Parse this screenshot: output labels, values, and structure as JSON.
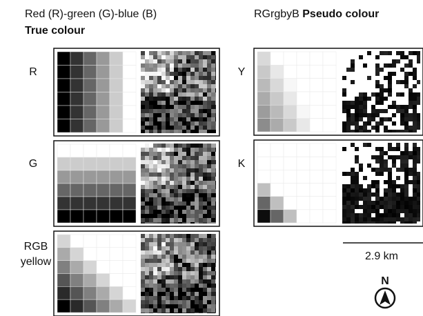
{
  "header": {
    "left_title": "Red (R)-green (G)-blue (B)",
    "left_subtitle": "True colour",
    "right_title_prefix": "RGrgbyB",
    "right_title_bold": "Pseudo colour"
  },
  "panels": [
    {
      "label": [
        "R"
      ]
    },
    {
      "label": [
        "G"
      ]
    },
    {
      "label": [
        "RGB",
        "yellow"
      ]
    },
    {
      "label": [
        "Y"
      ]
    },
    {
      "label": [
        "K"
      ]
    }
  ],
  "scale_bar": {
    "label": "2.9 km"
  },
  "north_arrow": {
    "label": "N"
  }
}
